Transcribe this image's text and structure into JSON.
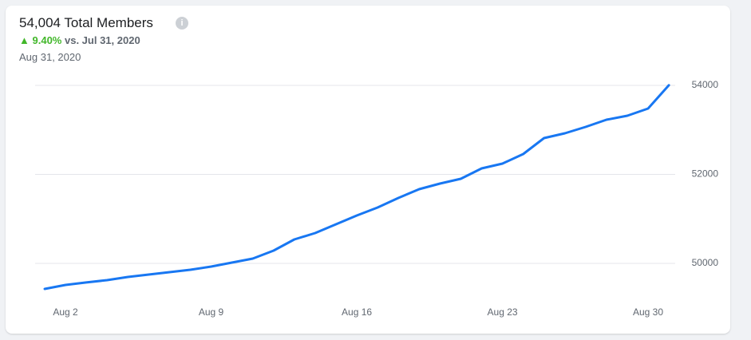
{
  "header": {
    "title": "54,004 Total Members",
    "change": "9.40%",
    "comparison": "vs. Jul 31, 2020",
    "date": "Aug 31, 2020"
  },
  "chart_data": {
    "type": "line",
    "categories": [
      null,
      "Aug 2",
      null,
      null,
      null,
      null,
      null,
      null,
      "Aug 9",
      null,
      null,
      null,
      null,
      null,
      null,
      "Aug 16",
      null,
      null,
      null,
      null,
      null,
      null,
      "Aug 23",
      null,
      null,
      null,
      null,
      null,
      null,
      "Aug 30",
      null
    ],
    "series": [
      {
        "name": "Total Members",
        "color": "#1877f2",
        "values": [
          49426,
          49516,
          49570,
          49623,
          49695,
          49749,
          49803,
          49857,
          49928,
          50018,
          50108,
          50287,
          50538,
          50682,
          50879,
          51076,
          51256,
          51471,
          51668,
          51794,
          51901,
          52135,
          52242,
          52457,
          52816,
          52924,
          53067,
          53229,
          53318,
          53480,
          54004
        ]
      }
    ],
    "ylim": [
      49300,
      54000
    ],
    "yticks": [
      50000,
      52000,
      54000
    ],
    "grid": true
  }
}
